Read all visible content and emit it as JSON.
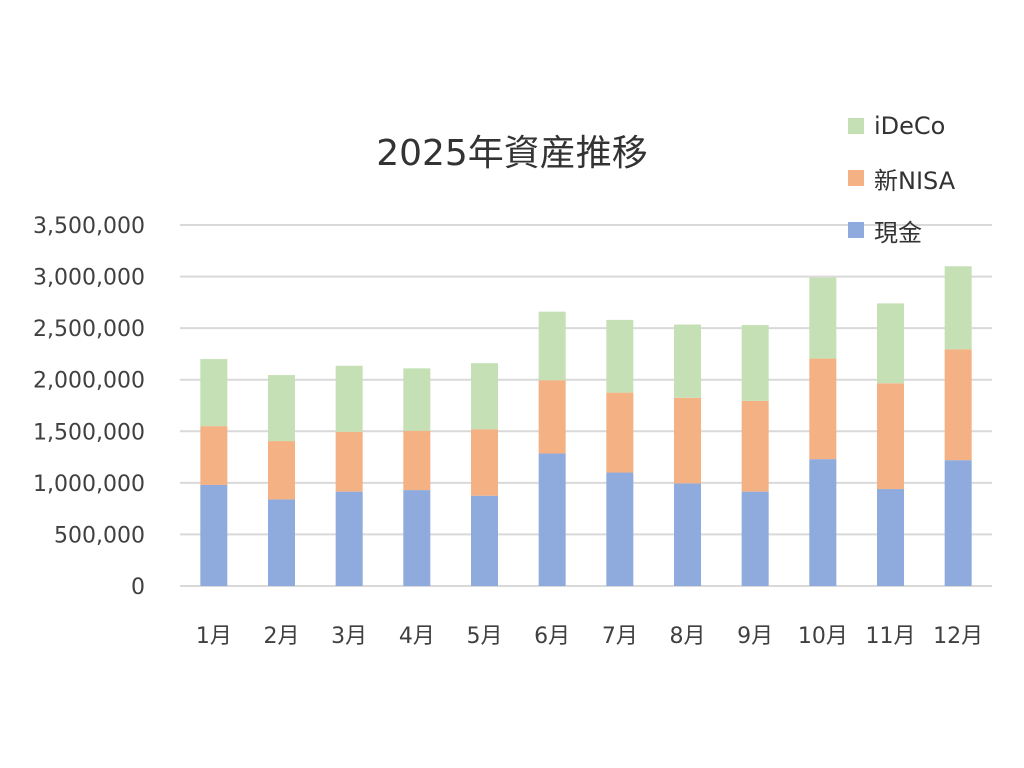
{
  "chart_data": {
    "type": "bar",
    "stacked": true,
    "title": "2025年資産推移",
    "xlabel": "",
    "ylabel": "",
    "ylim": [
      0,
      3500000
    ],
    "yticks": [
      0,
      500000,
      1000000,
      1500000,
      2000000,
      2500000,
      3000000,
      3500000
    ],
    "ytick_labels": [
      "0",
      "500,000",
      "1,000,000",
      "1,500,000",
      "2,000,000",
      "2,500,000",
      "3,000,000",
      "3,500,000"
    ],
    "grid": true,
    "legend_position": "top-right",
    "categories": [
      "1月",
      "2月",
      "3月",
      "4月",
      "5月",
      "6月",
      "7月",
      "8月",
      "9月",
      "10月",
      "11月",
      "12月"
    ],
    "series": [
      {
        "name": "現金",
        "color": "#8FAADC",
        "values": [
          980000,
          840000,
          915000,
          930000,
          875000,
          1285000,
          1100000,
          995000,
          915000,
          1230000,
          940000,
          1220000
        ]
      },
      {
        "name": "新NISA",
        "color": "#F4B183",
        "values": [
          570000,
          565000,
          580000,
          575000,
          645000,
          710000,
          775000,
          830000,
          880000,
          975000,
          1025000,
          1075000
        ]
      },
      {
        "name": "iDeCo",
        "color": "#C5E0B4",
        "values": [
          650000,
          640000,
          640000,
          605000,
          640000,
          665000,
          705000,
          710000,
          735000,
          785000,
          775000,
          805000
        ]
      }
    ]
  }
}
